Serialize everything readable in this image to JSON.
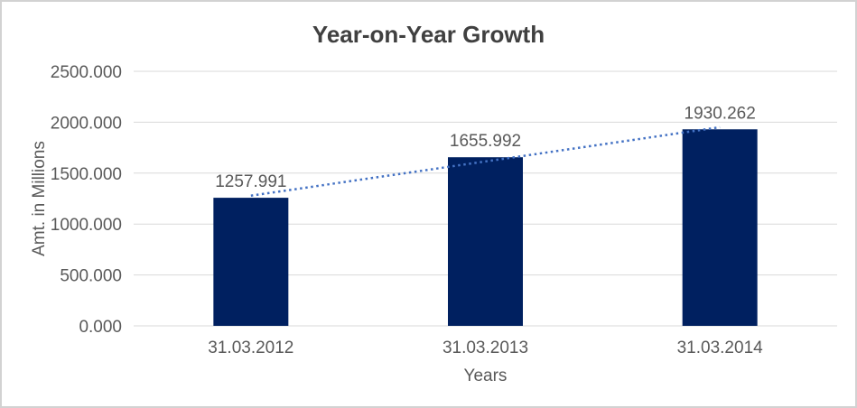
{
  "chart_data": {
    "type": "bar",
    "title": "Year-on-Year Growth",
    "categories": [
      "31.03.2012",
      "31.03.2013",
      "31.03.2014"
    ],
    "values": [
      1257.991,
      1655.992,
      1930.262
    ],
    "data_labels": [
      "1257.991",
      "1655.992",
      "1930.262"
    ],
    "xlabel": "Years",
    "ylabel": "Amt. in Millions",
    "ylim": [
      0,
      2500
    ],
    "ytick_step": 500,
    "yticks": [
      "0.000",
      "500.000",
      "1000.000",
      "1500.000",
      "2000.000",
      "2500.000"
    ],
    "grid": true,
    "legend": false,
    "trendline": {
      "type": "linear",
      "style": "dotted"
    },
    "colors": {
      "bar": "#002060",
      "trendline": "#4472C4",
      "gridline": "#D9D9D9",
      "axis_text": "#595959",
      "title_text": "#404040",
      "frame_border": "#D2D2D2"
    }
  }
}
